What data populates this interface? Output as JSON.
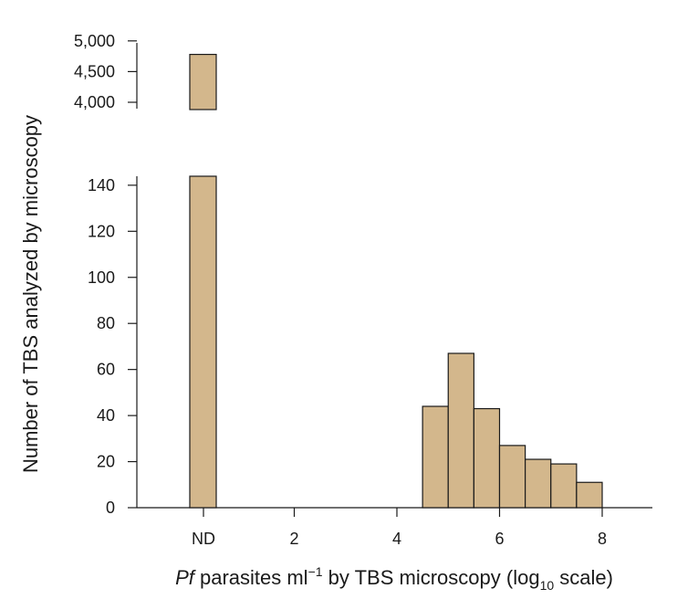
{
  "chart_data": {
    "type": "bar",
    "title": "",
    "xlabel": {
      "italic": "Pf",
      "part1": " parasites ml",
      "sup": "−1",
      "part2": " by TBS microscopy (log",
      "sub": "10",
      "part3": " scale)"
    },
    "ylabel": "Number of TBS analyzed by microscopy",
    "bar_color": "#D3B78C",
    "y_axis_broken": true,
    "y_lower_ticks": [
      "0",
      "20",
      "40",
      "60",
      "80",
      "100",
      "120",
      "140"
    ],
    "y_lower_tick_values": [
      0,
      20,
      40,
      60,
      80,
      100,
      120,
      140
    ],
    "y_upper_ticks": [
      "4,000",
      "4,500",
      "5,000"
    ],
    "y_upper_tick_values": [
      4000,
      4500,
      5000
    ],
    "x_ticks": [
      "ND",
      "2",
      "4",
      "6",
      "8"
    ],
    "nd_bar": {
      "label": "ND",
      "value": 4780
    },
    "histogram": {
      "bin_width": 0.5,
      "bins": [
        {
          "start": 4.5,
          "value": 44
        },
        {
          "start": 5.0,
          "value": 67
        },
        {
          "start": 5.5,
          "value": 43
        },
        {
          "start": 6.0,
          "value": 27
        },
        {
          "start": 6.5,
          "value": 21
        },
        {
          "start": 7.0,
          "value": 19
        },
        {
          "start": 7.5,
          "value": 11
        }
      ]
    }
  }
}
